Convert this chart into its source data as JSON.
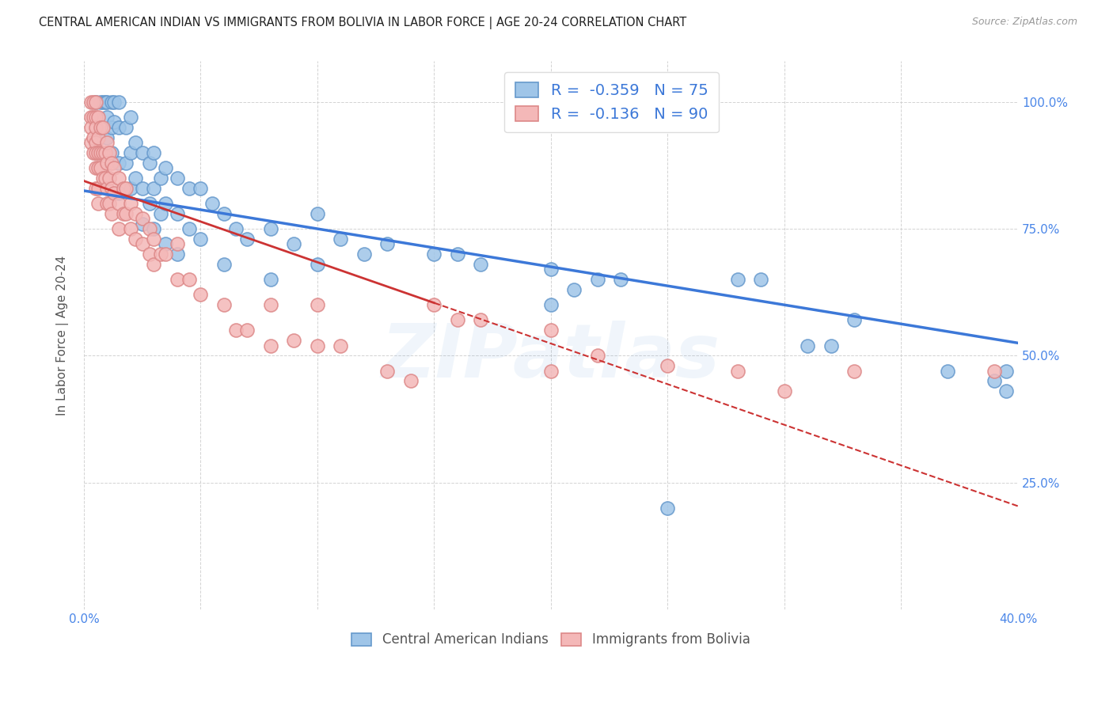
{
  "title": "CENTRAL AMERICAN INDIAN VS IMMIGRANTS FROM BOLIVIA IN LABOR FORCE | AGE 20-24 CORRELATION CHART",
  "source": "Source: ZipAtlas.com",
  "ylabel": "In Labor Force | Age 20-24",
  "xlim": [
    0.0,
    0.4
  ],
  "ylim": [
    0.0,
    1.08
  ],
  "color_blue": "#9fc5e8",
  "color_pink": "#f4b8b8",
  "edge_blue": "#6699cc",
  "edge_pink": "#dd8888",
  "line_color_blue": "#3c78d8",
  "line_color_pink": "#cc3333",
  "watermark": "ZIPatlas",
  "title_color": "#222222",
  "source_color": "#999999",
  "ylabel_color": "#555555",
  "tick_color": "#4a86e8",
  "grid_color": "#cccccc",
  "legend_r1": "-0.359",
  "legend_n1": "75",
  "legend_r2": "-0.136",
  "legend_n2": "90",
  "blue_scatter": [
    [
      0.005,
      1.0
    ],
    [
      0.007,
      1.0
    ],
    [
      0.008,
      1.0
    ],
    [
      0.009,
      1.0
    ],
    [
      0.01,
      1.0
    ],
    [
      0.01,
      0.97
    ],
    [
      0.01,
      0.93
    ],
    [
      0.012,
      1.0
    ],
    [
      0.012,
      0.95
    ],
    [
      0.012,
      0.9
    ],
    [
      0.013,
      1.0
    ],
    [
      0.013,
      0.96
    ],
    [
      0.015,
      1.0
    ],
    [
      0.015,
      0.95
    ],
    [
      0.015,
      0.88
    ],
    [
      0.015,
      0.82
    ],
    [
      0.018,
      0.95
    ],
    [
      0.018,
      0.88
    ],
    [
      0.02,
      0.97
    ],
    [
      0.02,
      0.9
    ],
    [
      0.02,
      0.83
    ],
    [
      0.022,
      0.92
    ],
    [
      0.022,
      0.85
    ],
    [
      0.025,
      0.9
    ],
    [
      0.025,
      0.83
    ],
    [
      0.025,
      0.76
    ],
    [
      0.028,
      0.88
    ],
    [
      0.028,
      0.8
    ],
    [
      0.03,
      0.9
    ],
    [
      0.03,
      0.83
    ],
    [
      0.03,
      0.75
    ],
    [
      0.033,
      0.85
    ],
    [
      0.033,
      0.78
    ],
    [
      0.035,
      0.87
    ],
    [
      0.035,
      0.8
    ],
    [
      0.035,
      0.72
    ],
    [
      0.04,
      0.85
    ],
    [
      0.04,
      0.78
    ],
    [
      0.04,
      0.7
    ],
    [
      0.045,
      0.83
    ],
    [
      0.045,
      0.75
    ],
    [
      0.05,
      0.83
    ],
    [
      0.05,
      0.73
    ],
    [
      0.055,
      0.8
    ],
    [
      0.06,
      0.78
    ],
    [
      0.06,
      0.68
    ],
    [
      0.065,
      0.75
    ],
    [
      0.07,
      0.73
    ],
    [
      0.08,
      0.75
    ],
    [
      0.08,
      0.65
    ],
    [
      0.09,
      0.72
    ],
    [
      0.1,
      0.78
    ],
    [
      0.1,
      0.68
    ],
    [
      0.11,
      0.73
    ],
    [
      0.12,
      0.7
    ],
    [
      0.13,
      0.72
    ],
    [
      0.15,
      0.7
    ],
    [
      0.16,
      0.7
    ],
    [
      0.17,
      0.68
    ],
    [
      0.2,
      0.67
    ],
    [
      0.2,
      0.6
    ],
    [
      0.21,
      0.63
    ],
    [
      0.22,
      0.65
    ],
    [
      0.23,
      0.65
    ],
    [
      0.25,
      0.2
    ],
    [
      0.28,
      0.65
    ],
    [
      0.29,
      0.65
    ],
    [
      0.31,
      0.52
    ],
    [
      0.32,
      0.52
    ],
    [
      0.33,
      0.57
    ],
    [
      0.37,
      0.47
    ],
    [
      0.39,
      0.45
    ],
    [
      0.395,
      0.43
    ],
    [
      0.395,
      0.47
    ]
  ],
  "pink_scatter": [
    [
      0.003,
      1.0
    ],
    [
      0.003,
      0.97
    ],
    [
      0.003,
      0.95
    ],
    [
      0.003,
      0.92
    ],
    [
      0.004,
      1.0
    ],
    [
      0.004,
      0.97
    ],
    [
      0.004,
      0.93
    ],
    [
      0.004,
      0.9
    ],
    [
      0.005,
      1.0
    ],
    [
      0.005,
      0.97
    ],
    [
      0.005,
      0.95
    ],
    [
      0.005,
      0.92
    ],
    [
      0.005,
      0.9
    ],
    [
      0.005,
      0.87
    ],
    [
      0.005,
      0.83
    ],
    [
      0.006,
      0.97
    ],
    [
      0.006,
      0.93
    ],
    [
      0.006,
      0.9
    ],
    [
      0.006,
      0.87
    ],
    [
      0.006,
      0.83
    ],
    [
      0.006,
      0.8
    ],
    [
      0.007,
      0.95
    ],
    [
      0.007,
      0.9
    ],
    [
      0.007,
      0.87
    ],
    [
      0.008,
      0.95
    ],
    [
      0.008,
      0.9
    ],
    [
      0.008,
      0.85
    ],
    [
      0.009,
      0.9
    ],
    [
      0.009,
      0.85
    ],
    [
      0.01,
      0.92
    ],
    [
      0.01,
      0.88
    ],
    [
      0.01,
      0.83
    ],
    [
      0.01,
      0.8
    ],
    [
      0.011,
      0.9
    ],
    [
      0.011,
      0.85
    ],
    [
      0.011,
      0.8
    ],
    [
      0.012,
      0.88
    ],
    [
      0.012,
      0.83
    ],
    [
      0.012,
      0.78
    ],
    [
      0.013,
      0.87
    ],
    [
      0.013,
      0.82
    ],
    [
      0.015,
      0.85
    ],
    [
      0.015,
      0.8
    ],
    [
      0.015,
      0.75
    ],
    [
      0.017,
      0.83
    ],
    [
      0.017,
      0.78
    ],
    [
      0.018,
      0.83
    ],
    [
      0.018,
      0.78
    ],
    [
      0.02,
      0.8
    ],
    [
      0.02,
      0.75
    ],
    [
      0.022,
      0.78
    ],
    [
      0.022,
      0.73
    ],
    [
      0.025,
      0.77
    ],
    [
      0.025,
      0.72
    ],
    [
      0.028,
      0.75
    ],
    [
      0.028,
      0.7
    ],
    [
      0.03,
      0.73
    ],
    [
      0.03,
      0.68
    ],
    [
      0.033,
      0.7
    ],
    [
      0.035,
      0.7
    ],
    [
      0.04,
      0.72
    ],
    [
      0.04,
      0.65
    ],
    [
      0.045,
      0.65
    ],
    [
      0.05,
      0.62
    ],
    [
      0.06,
      0.6
    ],
    [
      0.065,
      0.55
    ],
    [
      0.07,
      0.55
    ],
    [
      0.08,
      0.6
    ],
    [
      0.08,
      0.52
    ],
    [
      0.09,
      0.53
    ],
    [
      0.1,
      0.6
    ],
    [
      0.1,
      0.52
    ],
    [
      0.11,
      0.52
    ],
    [
      0.13,
      0.47
    ],
    [
      0.14,
      0.45
    ],
    [
      0.15,
      0.6
    ],
    [
      0.16,
      0.57
    ],
    [
      0.17,
      0.57
    ],
    [
      0.2,
      0.55
    ],
    [
      0.2,
      0.47
    ],
    [
      0.22,
      0.5
    ],
    [
      0.25,
      0.48
    ],
    [
      0.28,
      0.47
    ],
    [
      0.3,
      0.43
    ],
    [
      0.33,
      0.47
    ],
    [
      0.39,
      0.47
    ]
  ]
}
